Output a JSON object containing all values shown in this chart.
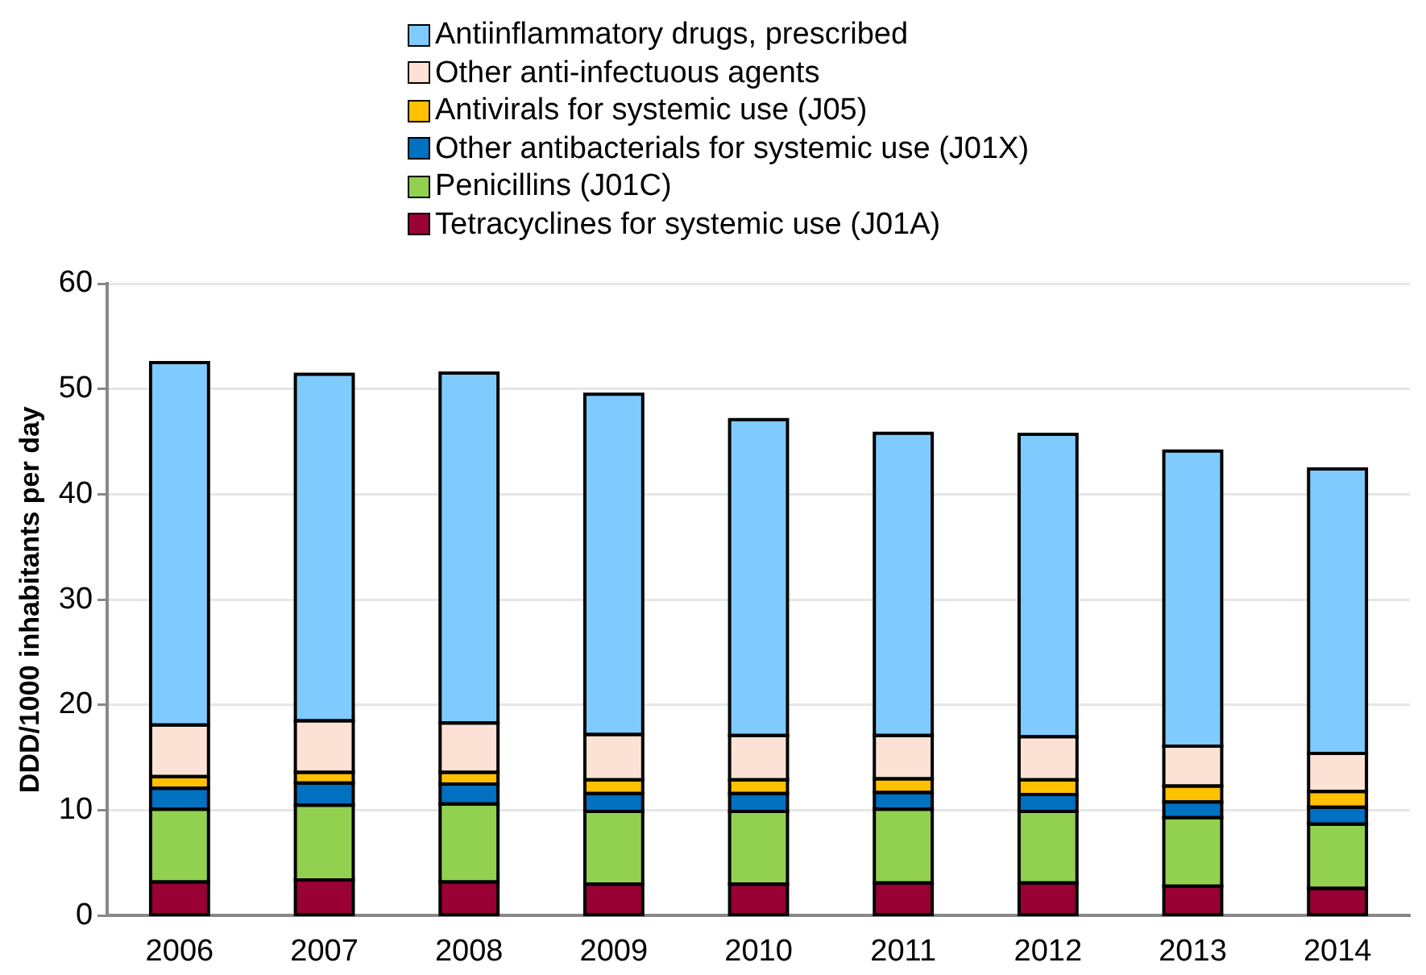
{
  "chart_data": {
    "type": "bar",
    "stacked": true,
    "ylabel": "DDD/1000 inhabitants per day",
    "categories": [
      "2006",
      "2007",
      "2008",
      "2009",
      "2010",
      "2011",
      "2012",
      "2013",
      "2014"
    ],
    "series": [
      {
        "name": "Tetracyclines for systemic use (J01A)",
        "color": "#990033",
        "values": [
          3.2,
          3.4,
          3.2,
          3.0,
          3.0,
          3.1,
          3.1,
          2.8,
          2.6
        ]
      },
      {
        "name": "Penicillins (J01C)",
        "color": "#92d050",
        "values": [
          6.9,
          7.1,
          7.4,
          6.9,
          6.9,
          7.0,
          6.8,
          6.5,
          6.1
        ]
      },
      {
        "name": "Other antibacterials for systemic use (J01X)",
        "color": "#0070c0",
        "values": [
          2.0,
          2.1,
          1.9,
          1.7,
          1.7,
          1.6,
          1.6,
          1.5,
          1.6
        ]
      },
      {
        "name": "Antivirals for systemic use (J05)",
        "color": "#ffc000",
        "values": [
          1.1,
          1.0,
          1.1,
          1.3,
          1.3,
          1.3,
          1.4,
          1.5,
          1.5
        ]
      },
      {
        "name": "Other anti-infectuous agents",
        "color": "#fbe2d5",
        "values": [
          4.9,
          4.9,
          4.7,
          4.3,
          4.2,
          4.1,
          4.1,
          3.8,
          3.6
        ]
      },
      {
        "name": "Antiinflammatory drugs, prescribed",
        "color": "#7fcbff",
        "values": [
          34.4,
          32.9,
          33.2,
          32.3,
          30.0,
          28.7,
          28.7,
          28.0,
          27.0
        ]
      }
    ],
    "ylim": [
      0,
      60
    ],
    "yticks": [
      0,
      10,
      20,
      30,
      40,
      50,
      60
    ],
    "grid": "y",
    "legend": "top"
  }
}
